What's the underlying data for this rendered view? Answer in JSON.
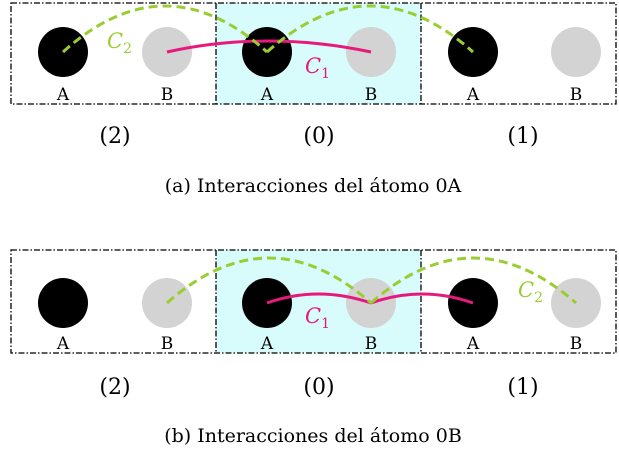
{
  "colors": {
    "atom_a": "#000000",
    "atom_b": "#d3d3d3",
    "c1": "#e6197c",
    "c2": "#9acd32",
    "cell_highlight": "#d8fbfb",
    "border": "#000000"
  },
  "curve_names": {
    "c1": "C",
    "c1_sub": "1",
    "c2": "C",
    "c2_sub": "2"
  },
  "panels": [
    {
      "caption": "(a) Interacciones del átomo 0A",
      "cells": [
        {
          "label": "(2)",
          "atoms": [
            "A",
            "B"
          ]
        },
        {
          "label": "(0)",
          "atoms": [
            "A",
            "B"
          ],
          "highlighted": true
        },
        {
          "label": "(1)",
          "atoms": [
            "A",
            "B"
          ]
        }
      ]
    },
    {
      "caption": "(b) Interacciones del átomo 0B",
      "cells": [
        {
          "label": "(2)",
          "atoms": [
            "A",
            "B"
          ]
        },
        {
          "label": "(0)",
          "atoms": [
            "A",
            "B"
          ],
          "highlighted": true
        },
        {
          "label": "(1)",
          "atoms": [
            "A",
            "B"
          ]
        }
      ]
    }
  ]
}
